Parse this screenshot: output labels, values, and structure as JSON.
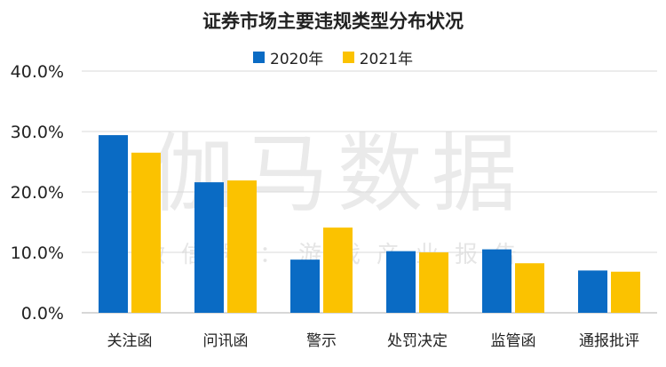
{
  "chart_data": {
    "type": "bar",
    "title": "证券市场主要违规类型分布状况",
    "categories": [
      "关注函",
      "问讯函",
      "警示",
      "处罚决定",
      "监管函",
      "通报批评"
    ],
    "series": [
      {
        "name": "2020年",
        "color": "#0a6bc4",
        "values": [
          29.4,
          21.6,
          8.8,
          10.2,
          10.5,
          7.0
        ]
      },
      {
        "name": "2021年",
        "color": "#fbc200",
        "values": [
          26.5,
          21.9,
          14.1,
          10.0,
          8.2,
          6.8
        ]
      }
    ],
    "ylim": [
      0,
      40
    ],
    "yticks": [
      "0.0%",
      "10.0%",
      "20.0%",
      "30.0%",
      "40.0%"
    ],
    "grid": true,
    "legend": "top"
  },
  "watermark": {
    "main": "伽马数据",
    "sub": "微信号：游戏产业报告"
  }
}
